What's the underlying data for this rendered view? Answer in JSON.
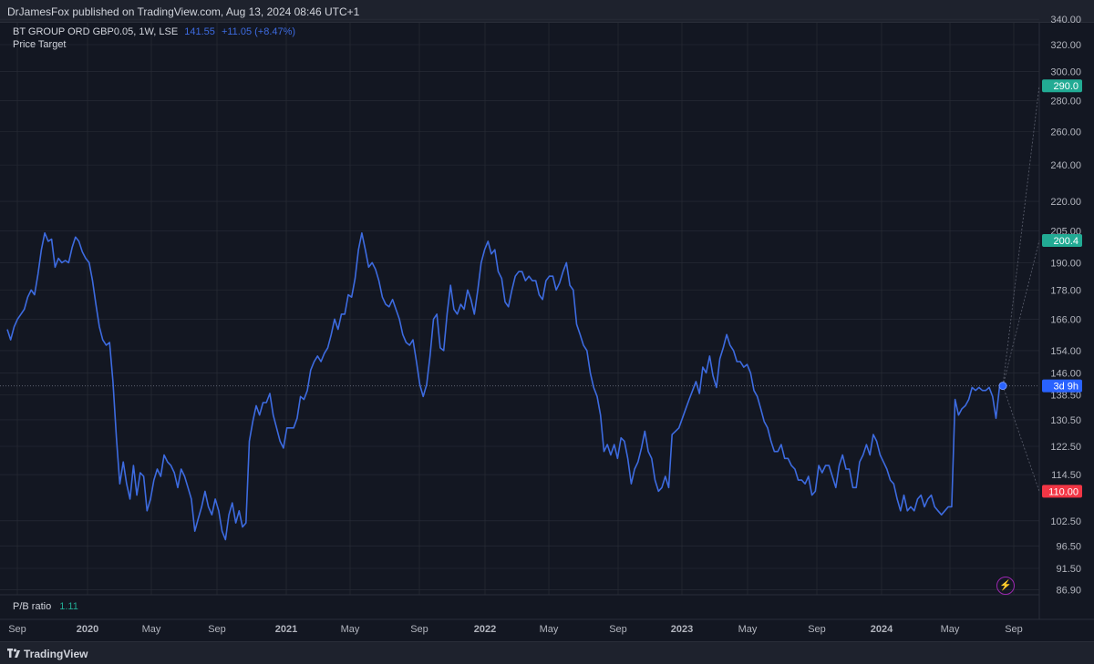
{
  "header": {
    "publish_text": "DrJamesFox published on TradingView.com, Aug 13, 2024 08:46 UTC+1"
  },
  "legend": {
    "symbol": "BT GROUP ORD GBP0.05, 1W, LSE",
    "price": "141.55",
    "change": "+11.05 (+8.47%)",
    "indicator": "Price Target"
  },
  "indicator_pane": {
    "label": "P/B ratio",
    "value": "1.11"
  },
  "footer": {
    "brand": "TradingView"
  },
  "colors": {
    "line": "#3d6be0",
    "background": "#131722",
    "grid": "#2a2e39",
    "badge_green": "#22ab94",
    "badge_red": "#f23645",
    "badge_blue": "#2962ff"
  },
  "chart_data": {
    "type": "line",
    "y_axis_ticks": [
      "340.00",
      "320.00",
      "300.00",
      "280.00",
      "260.00",
      "240.00",
      "220.00",
      "205.00",
      "190.00",
      "178.00",
      "166.00",
      "154.00",
      "146.00",
      "138.50",
      "130.50",
      "122.50",
      "114.50",
      "102.50",
      "96.50",
      "91.50",
      "86.90"
    ],
    "x_axis_labels": [
      "Sep",
      "2020",
      "May",
      "Sep",
      "2021",
      "May",
      "Sep",
      "2022",
      "May",
      "Sep",
      "2023",
      "May",
      "Sep",
      "2024",
      "May",
      "Sep"
    ],
    "price_badges": [
      {
        "label": "290.0",
        "kind": "green",
        "value": 290.0
      },
      {
        "label": "200.4",
        "kind": "green",
        "value": 200.4
      },
      {
        "label": "3d 9h",
        "kind": "blue",
        "value": 141.55
      },
      {
        "label": "110.00",
        "kind": "red",
        "value": 110.0
      }
    ],
    "series": [
      {
        "values": [
          162,
          158,
          163,
          166,
          168,
          170,
          175,
          178,
          176,
          185,
          196,
          204,
          200,
          201,
          188,
          192,
          190,
          191,
          190,
          197,
          202,
          200,
          195,
          192,
          190,
          182,
          172,
          163,
          158,
          156,
          157,
          143,
          125,
          112,
          118,
          112,
          108,
          117,
          109,
          115,
          114,
          105,
          108,
          113,
          116,
          114,
          120,
          118,
          117,
          115,
          111,
          116,
          114,
          111,
          108,
          100,
          103,
          106,
          110,
          106,
          104,
          108,
          105,
          100,
          98,
          104,
          107,
          102,
          105,
          101,
          102,
          124,
          130,
          135,
          132,
          136,
          136,
          139,
          132,
          128,
          124,
          122,
          128,
          128,
          128,
          131,
          138,
          137,
          140,
          147,
          150,
          152,
          150,
          153,
          155,
          160,
          166,
          162,
          168,
          168,
          176,
          175,
          183,
          196,
          204,
          196,
          188,
          190,
          187,
          182,
          175,
          172,
          171,
          174,
          170,
          166,
          160,
          157,
          156,
          158,
          150,
          142,
          138,
          142,
          152,
          166,
          168,
          155,
          154,
          168,
          180,
          170,
          168,
          172,
          170,
          178,
          174,
          168,
          178,
          190,
          196,
          200,
          194,
          196,
          186,
          183,
          173,
          171,
          178,
          184,
          186,
          186,
          182,
          184,
          182,
          182,
          176,
          174,
          182,
          184,
          184,
          178,
          181,
          186,
          190,
          180,
          178,
          164,
          160,
          156,
          154,
          146,
          141,
          138,
          132,
          121,
          123,
          120,
          123,
          119,
          125,
          124,
          119,
          112,
          116,
          118,
          122,
          127,
          121,
          119,
          113,
          110,
          111,
          114,
          111,
          126,
          127,
          128,
          131,
          134,
          137,
          140,
          143,
          139,
          148,
          146,
          152,
          145,
          141,
          151,
          155,
          160,
          156,
          154,
          150,
          150,
          148,
          149,
          146,
          140,
          138,
          134,
          130,
          128,
          124,
          121,
          121,
          123,
          119,
          119,
          117,
          116,
          113,
          113,
          112,
          114,
          109,
          110,
          117,
          115,
          117,
          117,
          114,
          111,
          117,
          120,
          116,
          116,
          111,
          111,
          118,
          120,
          123,
          120,
          126,
          124,
          120,
          118,
          116,
          113,
          112,
          108,
          105,
          109,
          105,
          106,
          105,
          108,
          109,
          106,
          108,
          109,
          106,
          105,
          104,
          105,
          106,
          106,
          137,
          132,
          134,
          135,
          137,
          141,
          140,
          141,
          140,
          140,
          141,
          138,
          131,
          141,
          141.55
        ]
      }
    ]
  }
}
